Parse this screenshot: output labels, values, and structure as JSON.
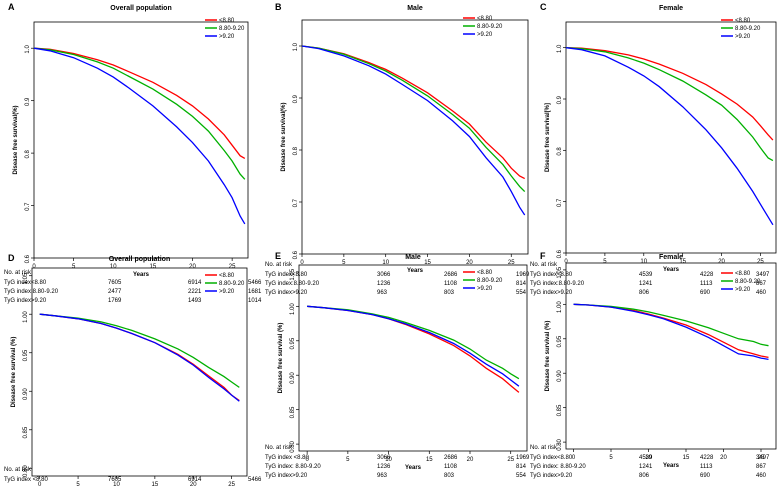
{
  "figure": {
    "x_label": "Years",
    "x_ticks": [
      0,
      5,
      10,
      15,
      20,
      25
    ],
    "risk_header": "No. at risk"
  },
  "chart_data": [
    {
      "letter": "A",
      "title": "Overall population",
      "type": "line",
      "ylabel": "Disease free survival(%)",
      "ylim": [
        0.6,
        1.05
      ],
      "y_ticks": [
        0.6,
        0.7,
        0.8,
        0.9,
        1.0
      ],
      "y_tick_labels": [
        "0.6",
        "0.7",
        "0.8",
        "0.9",
        "1.0"
      ],
      "xlim": [
        0,
        27
      ],
      "series": [
        {
          "name": "<8.80",
          "color": "#ff0000",
          "x": [
            0,
            2,
            5,
            8,
            10,
            12,
            15,
            18,
            20,
            22,
            24,
            25,
            26,
            26.6
          ],
          "y": [
            1.0,
            0.998,
            0.99,
            0.978,
            0.968,
            0.955,
            0.935,
            0.91,
            0.89,
            0.865,
            0.835,
            0.815,
            0.795,
            0.79
          ]
        },
        {
          "name": "8.80-9.20",
          "color": "#00b000",
          "x": [
            0,
            2,
            5,
            8,
            10,
            12,
            15,
            18,
            20,
            22,
            24,
            25,
            26,
            26.6
          ],
          "y": [
            1.0,
            0.997,
            0.988,
            0.974,
            0.962,
            0.946,
            0.922,
            0.893,
            0.87,
            0.842,
            0.805,
            0.785,
            0.76,
            0.75
          ]
        },
        {
          "name": ">9.20",
          "color": "#0000ff",
          "x": [
            0,
            2,
            5,
            8,
            10,
            12,
            15,
            18,
            20,
            22,
            24,
            25,
            26,
            26.6
          ],
          "y": [
            1.0,
            0.995,
            0.982,
            0.962,
            0.945,
            0.924,
            0.89,
            0.85,
            0.82,
            0.785,
            0.74,
            0.715,
            0.68,
            0.665
          ]
        }
      ],
      "risk_table": {
        "rows": [
          {
            "label": "TyG index<8.80",
            "values": [
              "7605",
              "6914",
              "5466"
            ]
          },
          {
            "label": "TyG index:8.80-9.20",
            "values": [
              "2477",
              "2221",
              "1681"
            ]
          },
          {
            "label": "TyG index>9.20",
            "values": [
              "1769",
              "1493",
              "1014"
            ]
          }
        ]
      }
    },
    {
      "letter": "B",
      "title": "Male",
      "type": "line",
      "ylabel": "Disease free survival(%)",
      "ylim": [
        0.6,
        1.05
      ],
      "y_ticks": [
        0.6,
        0.7,
        0.8,
        0.9,
        1.0
      ],
      "y_tick_labels": [
        "0.6",
        "0.7",
        "0.8",
        "0.9",
        "1.0"
      ],
      "xlim": [
        0,
        27
      ],
      "series": [
        {
          "name": "<8.80",
          "color": "#ff0000",
          "x": [
            0,
            2,
            5,
            8,
            10,
            12,
            15,
            18,
            20,
            22,
            24,
            25,
            26,
            26.6
          ],
          "y": [
            1.0,
            0.996,
            0.985,
            0.968,
            0.955,
            0.938,
            0.91,
            0.875,
            0.85,
            0.815,
            0.785,
            0.765,
            0.75,
            0.745
          ]
        },
        {
          "name": "8.80-9.20",
          "color": "#00b000",
          "x": [
            0,
            2,
            5,
            8,
            10,
            12,
            15,
            18,
            20,
            22,
            24,
            25,
            26,
            26.6
          ],
          "y": [
            1.0,
            0.996,
            0.984,
            0.966,
            0.952,
            0.934,
            0.904,
            0.868,
            0.842,
            0.805,
            0.772,
            0.75,
            0.73,
            0.72
          ]
        },
        {
          "name": ">9.20",
          "color": "#0000ff",
          "x": [
            0,
            2,
            5,
            8,
            10,
            12,
            15,
            18,
            20,
            22,
            24,
            25,
            26,
            26.6
          ],
          "y": [
            1.0,
            0.995,
            0.981,
            0.962,
            0.946,
            0.926,
            0.895,
            0.856,
            0.826,
            0.785,
            0.748,
            0.72,
            0.69,
            0.675
          ]
        }
      ],
      "risk_table": {
        "rows": [
          {
            "label": "TyG index<8.80",
            "values": [
              "3066",
              "2686",
              "1969"
            ]
          },
          {
            "label": "TyG index:8.80-9.20",
            "values": [
              "1236",
              "1108",
              "814"
            ]
          },
          {
            "label": "TyG index>9.20",
            "values": [
              "963",
              "803",
              "554"
            ]
          }
        ]
      }
    },
    {
      "letter": "C",
      "title": "Female",
      "type": "line",
      "ylabel": "Disease free survival[%]",
      "ylim": [
        0.6,
        1.05
      ],
      "y_ticks": [
        0.6,
        0.7,
        0.8,
        0.9,
        1.0
      ],
      "y_tick_labels": [
        "0.6",
        "0.7",
        "0.8",
        "0.9",
        "1.0"
      ],
      "xlim": [
        0,
        27
      ],
      "series": [
        {
          "name": "<8.80",
          "color": "#ff0000",
          "x": [
            0,
            2,
            5,
            8,
            10,
            12,
            15,
            18,
            20,
            22,
            24,
            25,
            26,
            26.6
          ],
          "y": [
            1.0,
            0.999,
            0.994,
            0.986,
            0.978,
            0.968,
            0.95,
            0.928,
            0.91,
            0.89,
            0.865,
            0.848,
            0.83,
            0.82
          ]
        },
        {
          "name": "8.80-9.20",
          "color": "#00b000",
          "x": [
            0,
            2,
            5,
            8,
            10,
            12,
            15,
            18,
            20,
            22,
            24,
            25,
            26,
            26.6
          ],
          "y": [
            1.0,
            0.998,
            0.992,
            0.98,
            0.97,
            0.957,
            0.935,
            0.908,
            0.888,
            0.86,
            0.826,
            0.805,
            0.785,
            0.78
          ]
        },
        {
          "name": ">9.20",
          "color": "#0000ff",
          "x": [
            0,
            2,
            5,
            8,
            10,
            12,
            15,
            18,
            20,
            22,
            24,
            25,
            26,
            26.6
          ],
          "y": [
            1.0,
            0.996,
            0.984,
            0.962,
            0.945,
            0.924,
            0.885,
            0.84,
            0.805,
            0.765,
            0.72,
            0.695,
            0.67,
            0.655
          ]
        }
      ],
      "risk_table": {
        "rows": [
          {
            "label": "TyG index<8.80",
            "values": [
              "4539",
              "4228",
              "3497"
            ]
          },
          {
            "label": "TyG index:8.80-9.20",
            "values": [
              "1241",
              "1113",
              "867"
            ]
          },
          {
            "label": "TyG index>9.20",
            "values": [
              "806",
              "690",
              "460"
            ]
          }
        ]
      }
    },
    {
      "letter": "D",
      "title": "Overall population",
      "type": "line",
      "ylabel": "Disease free survival (%)",
      "ylim": [
        0.79,
        1.06
      ],
      "y_ticks": [
        0.8,
        0.85,
        0.9,
        0.95,
        1.0,
        1.05
      ],
      "y_tick_labels": [
        "0.80",
        "0.85",
        "0.90",
        "0.95",
        "1.00",
        "1.05"
      ],
      "xlim": [
        -1,
        27
      ],
      "series": [
        {
          "name": "<8.80",
          "color": "#ff0000",
          "x": [
            0,
            2,
            5,
            8,
            10,
            12,
            15,
            18,
            20,
            22,
            24,
            25,
            26
          ],
          "y": [
            1.0,
            0.998,
            0.994,
            0.988,
            0.982,
            0.975,
            0.963,
            0.948,
            0.935,
            0.92,
            0.905,
            0.895,
            0.888
          ]
        },
        {
          "name": "8.80-9.20",
          "color": "#00b000",
          "x": [
            0,
            2,
            5,
            8,
            10,
            12,
            15,
            18,
            20,
            22,
            24,
            25,
            26
          ],
          "y": [
            1.0,
            0.998,
            0.995,
            0.99,
            0.985,
            0.979,
            0.968,
            0.955,
            0.944,
            0.931,
            0.919,
            0.912,
            0.905
          ]
        },
        {
          "name": ">9.20",
          "color": "#0000ff",
          "x": [
            0,
            2,
            5,
            8,
            10,
            12,
            15,
            18,
            20,
            22,
            24,
            25,
            26
          ],
          "y": [
            1.0,
            0.998,
            0.994,
            0.988,
            0.982,
            0.975,
            0.963,
            0.947,
            0.934,
            0.918,
            0.903,
            0.895,
            0.887
          ]
        }
      ],
      "risk_table": {
        "rows": [
          {
            "label": "TyG index <8.80",
            "values": [
              "7605",
              "6914",
              "5466"
            ]
          },
          {
            "label": "TyG index: 8.80-9.20",
            "values": [
              "2477",
              "2221",
              "1681"
            ]
          },
          {
            "label": "TyG index>9.20",
            "values": [
              "1769",
              "1493",
              "1014"
            ]
          }
        ]
      }
    },
    {
      "letter": "E",
      "title": "Male",
      "type": "line",
      "ylabel": "Disease free survival (%)",
      "ylim": [
        0.79,
        1.06
      ],
      "y_ticks": [
        0.8,
        0.85,
        0.9,
        0.95,
        1.0,
        1.05
      ],
      "y_tick_labels": [
        "0.80",
        "0.85",
        "0.90",
        "0.95",
        "1.00",
        "1.05"
      ],
      "xlim": [
        -1,
        27
      ],
      "series": [
        {
          "name": "<8.80",
          "color": "#ff0000",
          "x": [
            0,
            2,
            5,
            8,
            10,
            12,
            15,
            18,
            20,
            22,
            24,
            25,
            26
          ],
          "y": [
            1.0,
            0.998,
            0.994,
            0.988,
            0.982,
            0.974,
            0.96,
            0.943,
            0.928,
            0.91,
            0.895,
            0.885,
            0.875
          ]
        },
        {
          "name": "8.80-9.20",
          "color": "#00b000",
          "x": [
            0,
            2,
            5,
            8,
            10,
            12,
            15,
            18,
            20,
            22,
            24,
            25,
            26
          ],
          "y": [
            1.0,
            0.998,
            0.995,
            0.989,
            0.984,
            0.977,
            0.965,
            0.951,
            0.938,
            0.922,
            0.91,
            0.902,
            0.895
          ]
        },
        {
          "name": ">9.20",
          "color": "#0000ff",
          "x": [
            0,
            2,
            5,
            8,
            10,
            12,
            15,
            18,
            20,
            22,
            24,
            25,
            26
          ],
          "y": [
            1.0,
            0.998,
            0.994,
            0.988,
            0.982,
            0.975,
            0.962,
            0.946,
            0.932,
            0.916,
            0.902,
            0.893,
            0.884
          ]
        }
      ],
      "risk_table": {
        "rows": [
          {
            "label": "TyG index <8.80",
            "values": [
              "3066",
              "2686",
              "1969"
            ]
          },
          {
            "label": "TyG index: 8.80-9.20",
            "values": [
              "1236",
              "1108",
              "814"
            ]
          },
          {
            "label": "TyG index>9.20",
            "values": [
              "963",
              "803",
              "554"
            ]
          }
        ]
      }
    },
    {
      "letter": "F",
      "title": "Female",
      "type": "line",
      "ylabel": "Disease free survival (%)",
      "ylim": [
        0.79,
        1.06
      ],
      "y_ticks": [
        0.8,
        0.85,
        0.9,
        0.95,
        1.0,
        1.05
      ],
      "y_tick_labels": [
        "0.80",
        "0.85",
        "0.90",
        "0.95",
        "1.00",
        "1.05"
      ],
      "xlim": [
        -1,
        27
      ],
      "series": [
        {
          "name": "<8.80",
          "color": "#ff0000",
          "x": [
            0,
            2,
            5,
            8,
            10,
            12,
            15,
            18,
            20,
            22,
            24,
            25,
            26
          ],
          "y": [
            1.0,
            0.999,
            0.996,
            0.991,
            0.986,
            0.98,
            0.97,
            0.956,
            0.945,
            0.934,
            0.928,
            0.925,
            0.923
          ]
        },
        {
          "name": "8.80-9.20",
          "color": "#00b000",
          "x": [
            0,
            2,
            5,
            8,
            10,
            12,
            15,
            18,
            20,
            22,
            24,
            25,
            26
          ],
          "y": [
            1.0,
            0.999,
            0.997,
            0.993,
            0.989,
            0.984,
            0.976,
            0.966,
            0.958,
            0.95,
            0.946,
            0.942,
            0.94
          ]
        },
        {
          "name": ">9.20",
          "color": "#0000ff",
          "x": [
            0,
            2,
            5,
            8,
            10,
            12,
            15,
            18,
            20,
            22,
            24,
            25,
            26
          ],
          "y": [
            1.0,
            0.999,
            0.996,
            0.99,
            0.985,
            0.979,
            0.967,
            0.952,
            0.94,
            0.928,
            0.925,
            0.922,
            0.92
          ]
        }
      ],
      "risk_table": {
        "rows": [
          {
            "label": "TyG index<8.80",
            "values": [
              "4539",
              "4228",
              "3497"
            ]
          },
          {
            "label": "TyG index: 8.80-9.20",
            "values": [
              "1241",
              "1113",
              "867"
            ]
          },
          {
            "label": "TyG index>9.20",
            "values": [
              "806",
              "690",
              "460"
            ]
          }
        ]
      }
    }
  ]
}
